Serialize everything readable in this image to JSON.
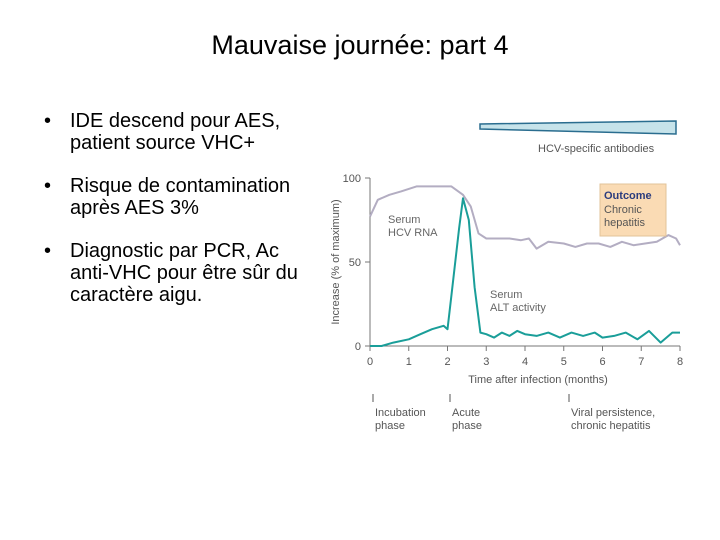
{
  "slide": {
    "title": "Mauvaise journée: part 4",
    "bullets": [
      "IDE descend pour AES, patient source VHC+",
      "Risque de contamination après AES 3%",
      "Diagnostic par PCR, Ac anti-VHC pour être sûr du caractère aigu."
    ],
    "bullet_glyph": "•"
  },
  "chart_data": {
    "type": "line",
    "xlabel": "Time after infection (months)",
    "ylabel": "Increase (% of maximum)",
    "xlim": [
      0,
      8
    ],
    "ylim": [
      0,
      100
    ],
    "x_ticks": [
      "0",
      "1",
      "2",
      "3",
      "4",
      "5",
      "6",
      "7",
      "8"
    ],
    "y_ticks": [
      "0",
      "50",
      "100"
    ],
    "series": [
      {
        "name": "Serum HCV RNA",
        "label_lines": [
          "Serum",
          "HCV RNA"
        ],
        "color": "#b3adc2",
        "x": [
          0,
          0.2,
          0.5,
          0.8,
          1.2,
          1.5,
          1.8,
          2.1,
          2.4,
          2.6,
          2.8,
          3.0,
          3.3,
          3.6,
          3.9,
          4.1,
          4.3,
          4.6,
          5.0,
          5.3,
          5.6,
          5.9,
          6.2,
          6.5,
          6.8,
          7.1,
          7.4,
          7.7,
          7.9,
          8.0
        ],
        "y": [
          77,
          87,
          90,
          92,
          95,
          95,
          95,
          95,
          90,
          83,
          67,
          64,
          64,
          64,
          63,
          64,
          58,
          62,
          61,
          59,
          61,
          61,
          59,
          62,
          60,
          61,
          62,
          66,
          64,
          60
        ]
      },
      {
        "name": "Serum ALT activity",
        "label_lines": [
          "Serum",
          "ALT activity"
        ],
        "color": "#1a9e99",
        "x": [
          0,
          0.3,
          0.6,
          1.0,
          1.3,
          1.6,
          1.9,
          2.0,
          2.1,
          2.3,
          2.4,
          2.55,
          2.7,
          2.85,
          3.0,
          3.2,
          3.4,
          3.6,
          3.8,
          4.0,
          4.3,
          4.6,
          4.9,
          5.2,
          5.5,
          5.8,
          6.0,
          6.3,
          6.6,
          6.9,
          7.2,
          7.5,
          7.8,
          8.0
        ],
        "y": [
          0,
          0,
          2,
          4,
          7,
          10,
          12,
          10,
          30,
          70,
          88,
          75,
          35,
          8,
          7,
          5,
          8,
          6,
          9,
          7,
          6,
          8,
          5,
          8,
          6,
          8,
          5,
          6,
          8,
          4,
          9,
          2,
          8,
          8
        ]
      }
    ],
    "top_bar_label": "HCV-specific antibodies",
    "outcome_box": {
      "title": "Outcome",
      "lines": [
        "Chronic",
        "hepatitis"
      ],
      "bg_color": "#fadbb4",
      "title_color": "#2b3c7e"
    },
    "phases": [
      {
        "lines": [
          "Incubation",
          "phase"
        ]
      },
      {
        "lines": [
          "Acute",
          "phase"
        ]
      },
      {
        "lines": [
          "Viral persistence,",
          "chronic hepatitis"
        ]
      }
    ],
    "grid": false,
    "legend": "inline"
  }
}
